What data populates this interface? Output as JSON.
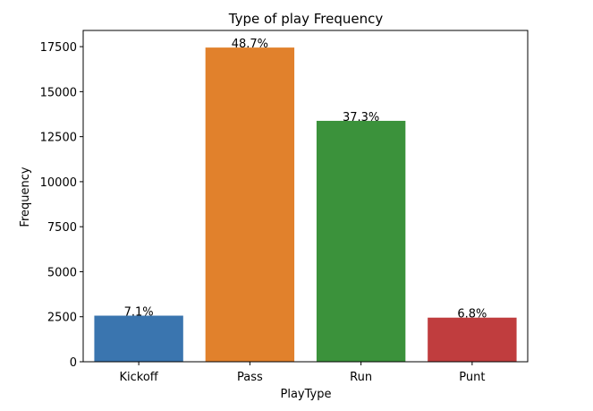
{
  "chart_data": {
    "type": "bar",
    "title": "Type of play Frequency",
    "xlabel": "PlayType",
    "ylabel": "Frequency",
    "categories": [
      "Kickoff",
      "Pass",
      "Run",
      "Punt"
    ],
    "values": [
      2560,
      17450,
      13380,
      2450
    ],
    "data_labels": [
      "7.1%",
      "48.7%",
      "37.3%",
      "6.8%"
    ],
    "colors": [
      "#3a75af",
      "#e1812c",
      "#3b923b",
      "#c03d3e"
    ],
    "yticks": [
      0,
      2500,
      5000,
      7500,
      10000,
      12500,
      15000,
      17500
    ],
    "ytick_labels": [
      "0",
      "2500",
      "5000",
      "7500",
      "10000",
      "12500",
      "15000",
      "17500"
    ],
    "ylim": [
      0,
      18400
    ],
    "grid": false,
    "legend": "none"
  }
}
